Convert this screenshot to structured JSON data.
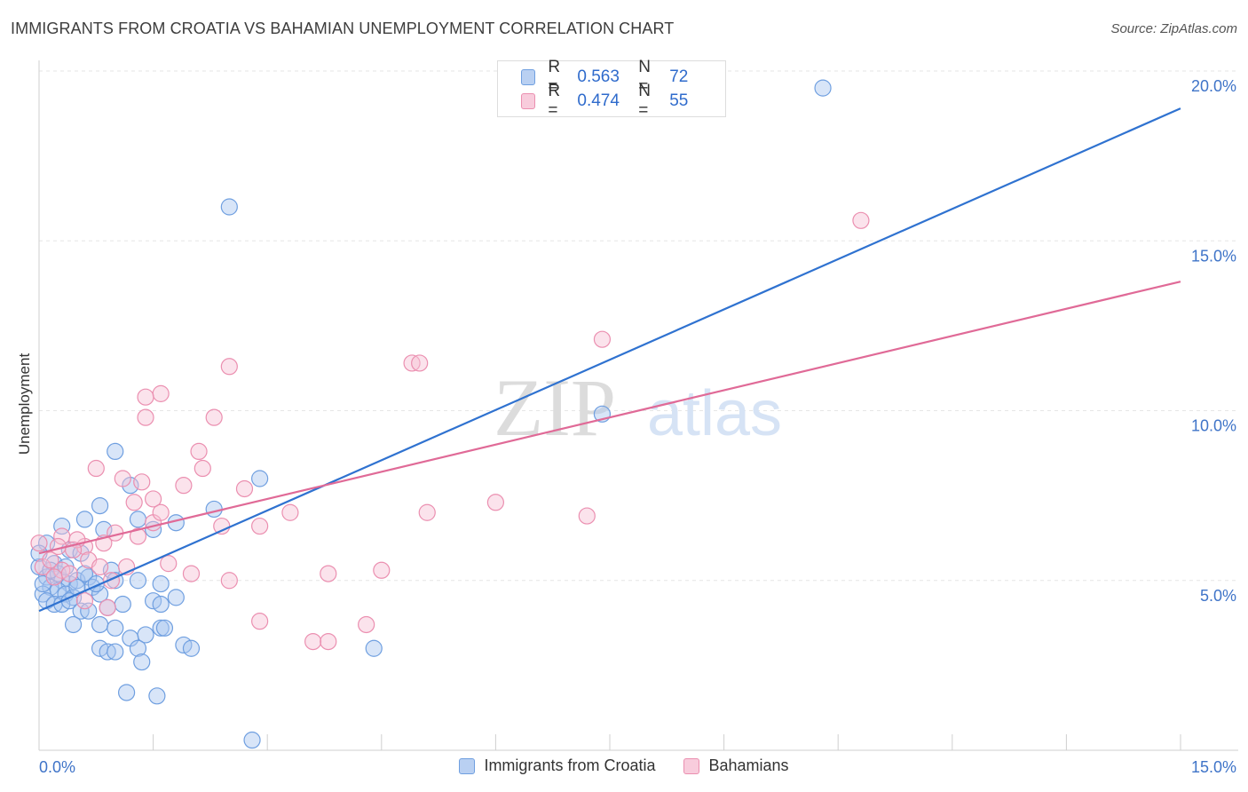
{
  "chart_data": {
    "type": "scatter",
    "title": "IMMIGRANTS FROM CROATIA VS BAHAMIAN UNEMPLOYMENT CORRELATION CHART",
    "source": "Source: ZipAtlas.com",
    "ylabel": "Unemployment",
    "xlabel": "",
    "xlim": [
      0,
      15
    ],
    "ylim": [
      0,
      20.5
    ],
    "x_ticks": [
      "0.0%",
      "15.0%"
    ],
    "y_ticks": [
      {
        "value": 5,
        "label": "5.0%"
      },
      {
        "value": 10,
        "label": "10.0%"
      },
      {
        "value": 15,
        "label": "15.0%"
      },
      {
        "value": 20,
        "label": "20.0%"
      }
    ],
    "watermark": {
      "zip": "ZIP",
      "atlas": "atlas"
    },
    "legend": {
      "entries": [
        {
          "r_label": "R =",
          "r_value": "0.563",
          "n_label": "N =",
          "n_value": "72"
        },
        {
          "r_label": "R =",
          "r_value": "0.474",
          "n_label": "N =",
          "n_value": "55"
        }
      ]
    },
    "series": [
      {
        "name": "Immigrants from Croatia",
        "color": "#6f9fe0",
        "fill": "#a9c6f0",
        "line_color": "#2f72d0",
        "trend": {
          "x": [
            0,
            15
          ],
          "y": [
            4.1,
            18.9
          ]
        },
        "points": [
          [
            10.3,
            19.5
          ],
          [
            2.5,
            16.0
          ],
          [
            7.4,
            9.9
          ],
          [
            2.9,
            8.0
          ],
          [
            1.0,
            8.8
          ],
          [
            1.2,
            7.8
          ],
          [
            2.3,
            7.1
          ],
          [
            0.8,
            7.2
          ],
          [
            0.6,
            6.8
          ],
          [
            0.3,
            6.6
          ],
          [
            1.3,
            6.8
          ],
          [
            1.5,
            6.5
          ],
          [
            1.8,
            6.7
          ],
          [
            0.85,
            6.5
          ],
          [
            0.1,
            6.1
          ],
          [
            0.4,
            5.9
          ],
          [
            0.2,
            5.5
          ],
          [
            0.55,
            5.8
          ],
          [
            0.0,
            5.4
          ],
          [
            0.1,
            5.1
          ],
          [
            0.3,
            5.0
          ],
          [
            0.4,
            4.9
          ],
          [
            0.5,
            5.0
          ],
          [
            0.65,
            5.1
          ],
          [
            0.7,
            4.8
          ],
          [
            0.15,
            4.8
          ],
          [
            0.25,
            4.7
          ],
          [
            0.35,
            4.6
          ],
          [
            0.05,
            4.6
          ],
          [
            0.45,
            4.5
          ],
          [
            1.3,
            5.0
          ],
          [
            1.6,
            4.9
          ],
          [
            0.8,
            4.6
          ],
          [
            0.1,
            4.4
          ],
          [
            0.2,
            4.3
          ],
          [
            0.3,
            4.3
          ],
          [
            0.4,
            4.4
          ],
          [
            0.55,
            4.1
          ],
          [
            0.65,
            4.1
          ],
          [
            0.9,
            4.2
          ],
          [
            1.1,
            4.3
          ],
          [
            1.5,
            4.4
          ],
          [
            1.6,
            4.3
          ],
          [
            1.8,
            4.5
          ],
          [
            0.45,
            3.7
          ],
          [
            0.8,
            3.7
          ],
          [
            1.0,
            3.6
          ],
          [
            1.4,
            3.4
          ],
          [
            1.6,
            3.6
          ],
          [
            1.65,
            3.6
          ],
          [
            1.2,
            3.3
          ],
          [
            0.8,
            3.0
          ],
          [
            0.9,
            2.9
          ],
          [
            1.0,
            2.9
          ],
          [
            1.3,
            3.0
          ],
          [
            1.9,
            3.1
          ],
          [
            2.0,
            3.0
          ],
          [
            1.35,
            2.6
          ],
          [
            4.4,
            3.0
          ],
          [
            1.15,
            1.7
          ],
          [
            1.55,
            1.6
          ],
          [
            2.8,
            0.3
          ],
          [
            0.05,
            4.9
          ],
          [
            0.25,
            5.2
          ],
          [
            0.6,
            5.2
          ],
          [
            0.75,
            4.9
          ],
          [
            0.95,
            5.3
          ],
          [
            1.0,
            5.0
          ],
          [
            0.15,
            5.3
          ],
          [
            0.5,
            4.8
          ],
          [
            0.35,
            5.4
          ],
          [
            0.0,
            5.8
          ]
        ]
      },
      {
        "name": "Bahamians",
        "color": "#eb8fb0",
        "fill": "#f6c2d4",
        "line_color": "#e06a97",
        "trend": {
          "x": [
            0,
            15
          ],
          "y": [
            5.8,
            13.8
          ]
        },
        "points": [
          [
            10.8,
            15.6
          ],
          [
            7.4,
            12.1
          ],
          [
            2.5,
            11.3
          ],
          [
            4.9,
            11.4
          ],
          [
            5.0,
            11.4
          ],
          [
            1.6,
            10.5
          ],
          [
            1.4,
            10.4
          ],
          [
            1.4,
            9.8
          ],
          [
            2.3,
            9.8
          ],
          [
            2.1,
            8.8
          ],
          [
            0.75,
            8.3
          ],
          [
            2.15,
            8.3
          ],
          [
            1.9,
            7.8
          ],
          [
            2.7,
            7.7
          ],
          [
            1.1,
            8.0
          ],
          [
            1.35,
            7.9
          ],
          [
            1.5,
            7.4
          ],
          [
            1.25,
            7.3
          ],
          [
            0.3,
            6.3
          ],
          [
            0.6,
            6.0
          ],
          [
            1.0,
            6.4
          ],
          [
            1.3,
            6.3
          ],
          [
            0.25,
            6.0
          ],
          [
            0.5,
            6.2
          ],
          [
            0.85,
            6.1
          ],
          [
            3.3,
            7.0
          ],
          [
            5.1,
            7.0
          ],
          [
            6.0,
            7.3
          ],
          [
            7.2,
            6.9
          ],
          [
            2.4,
            6.6
          ],
          [
            2.9,
            6.6
          ],
          [
            1.5,
            6.7
          ],
          [
            1.6,
            7.0
          ],
          [
            0.05,
            5.4
          ],
          [
            0.15,
            5.6
          ],
          [
            0.3,
            5.3
          ],
          [
            0.45,
            5.9
          ],
          [
            0.65,
            5.6
          ],
          [
            0.8,
            5.4
          ],
          [
            1.15,
            5.4
          ],
          [
            1.7,
            5.5
          ],
          [
            2.0,
            5.2
          ],
          [
            2.5,
            5.0
          ],
          [
            3.8,
            5.2
          ],
          [
            4.5,
            5.3
          ],
          [
            0.2,
            5.1
          ],
          [
            0.4,
            5.2
          ],
          [
            0.95,
            5.0
          ],
          [
            0.6,
            4.4
          ],
          [
            0.9,
            4.2
          ],
          [
            2.9,
            3.8
          ],
          [
            4.3,
            3.7
          ],
          [
            3.6,
            3.2
          ],
          [
            3.8,
            3.2
          ],
          [
            0.0,
            6.1
          ]
        ]
      }
    ]
  }
}
